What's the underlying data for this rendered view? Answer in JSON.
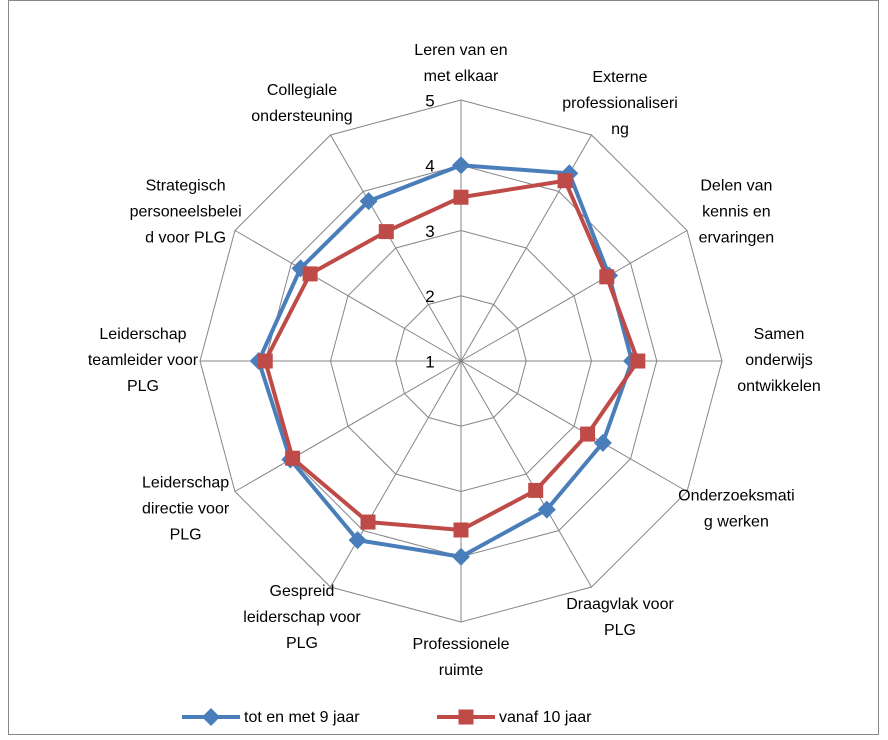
{
  "chart_data": {
    "type": "radar",
    "categories": [
      [
        "Leren van en",
        "met elkaar"
      ],
      [
        "Externe",
        "professionaliseri",
        "ng"
      ],
      [
        "Delen van",
        "kennis en",
        "ervaringen"
      ],
      [
        "Samen",
        "onderwijs",
        "ontwikkelen"
      ],
      [
        "Onderzoeksmati",
        "g werken"
      ],
      [
        "Draagvlak voor",
        "PLG"
      ],
      [
        "Professionele",
        "ruimte"
      ],
      [
        "Gespreid",
        "leiderschap voor",
        "PLG"
      ],
      [
        "Leiderschap",
        "directie voor",
        "PLG"
      ],
      [
        "Leiderschap",
        "teamleider voor",
        "PLG"
      ],
      [
        "Strategisch",
        "personeelsbelei",
        "d voor PLG"
      ],
      [
        "Collegiale",
        "ondersteuning"
      ]
    ],
    "series": [
      {
        "name": "tot en met 9 jaar",
        "color": "#4a7ebb",
        "marker": "diamond",
        "values": [
          4.0,
          4.32,
          3.62,
          3.62,
          3.51,
          3.63,
          4.0,
          4.17,
          4.02,
          4.1,
          3.84,
          3.83
        ]
      },
      {
        "name": "vanaf 10 jaar",
        "color": "#be4b48",
        "marker": "square",
        "values": [
          3.51,
          4.19,
          3.58,
          3.71,
          3.24,
          3.29,
          3.59,
          3.85,
          3.98,
          4.0,
          3.67,
          3.29
        ]
      }
    ],
    "ylim": [
      1,
      5
    ],
    "yticks": [
      1,
      2,
      3,
      4,
      5
    ],
    "grid": true,
    "legend": "bottom"
  }
}
